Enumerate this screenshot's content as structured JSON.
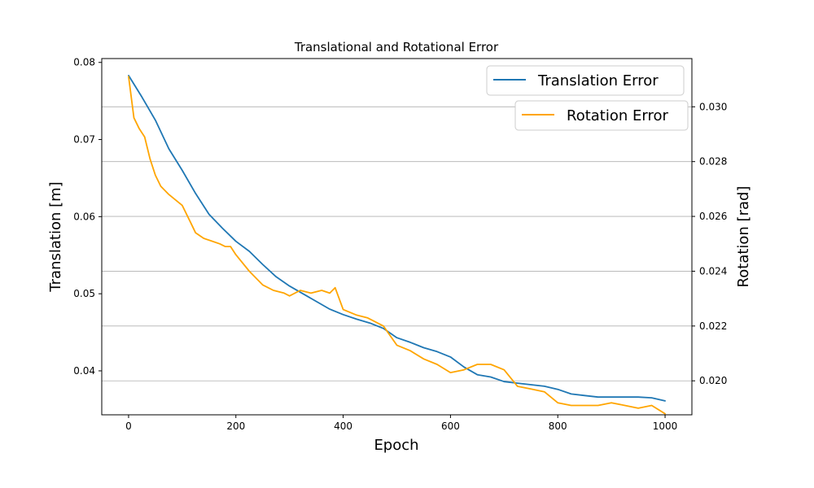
{
  "chart_data": {
    "type": "line",
    "title": "Translational  and Rotational Error",
    "xlabel": "Epoch",
    "ylabel_left": "Translation [m]",
    "ylabel_right": "Rotation [rad]",
    "xlim": [
      -50,
      1050
    ],
    "ylim_left": [
      0.0343,
      0.0805
    ],
    "ylim_right": [
      0.01876,
      0.03176
    ],
    "x_ticks": [
      0,
      200,
      400,
      600,
      800,
      1000
    ],
    "y_ticks_left": [
      0.04,
      0.05,
      0.06,
      0.07,
      0.08
    ],
    "y_ticks_right": [
      0.02,
      0.022,
      0.024,
      0.026,
      0.028,
      0.03
    ],
    "grid": "horizontal lines at right-axis ticks",
    "legend": [
      {
        "label": "Translation Error",
        "placement": "top-right"
      },
      {
        "label": "Rotation Error",
        "placement": "upper-right"
      }
    ],
    "series": [
      {
        "name": "Translation Error",
        "axis": "left",
        "color": "#1f77b4",
        "x": [
          0,
          25,
          50,
          75,
          100,
          125,
          150,
          175,
          200,
          225,
          250,
          275,
          300,
          325,
          350,
          375,
          400,
          425,
          450,
          475,
          500,
          525,
          550,
          575,
          600,
          625,
          650,
          675,
          700,
          725,
          750,
          775,
          800,
          825,
          850,
          875,
          900,
          925,
          950,
          975,
          1000
        ],
        "values": [
          0.0783,
          0.0755,
          0.0725,
          0.0688,
          0.066,
          0.063,
          0.0603,
          0.0585,
          0.0568,
          0.0555,
          0.0538,
          0.0522,
          0.051,
          0.05,
          0.049,
          0.048,
          0.0473,
          0.0467,
          0.0462,
          0.0455,
          0.0443,
          0.0437,
          0.043,
          0.0425,
          0.0418,
          0.0405,
          0.0395,
          0.0392,
          0.0386,
          0.0384,
          0.0382,
          0.038,
          0.0376,
          0.037,
          0.0368,
          0.0366,
          0.0366,
          0.0366,
          0.0366,
          0.0365,
          0.0361
        ]
      },
      {
        "name": "Rotation Error",
        "axis": "right",
        "color": "#ffa500",
        "x": [
          0,
          10,
          20,
          30,
          40,
          50,
          60,
          75,
          100,
          115,
          125,
          140,
          155,
          170,
          180,
          190,
          200,
          225,
          250,
          270,
          290,
          300,
          320,
          340,
          360,
          375,
          385,
          400,
          425,
          445,
          475,
          500,
          525,
          550,
          575,
          600,
          625,
          650,
          675,
          700,
          725,
          750,
          775,
          800,
          825,
          850,
          875,
          900,
          925,
          950,
          975,
          1000
        ],
        "values": [
          0.0311,
          0.0296,
          0.0292,
          0.0289,
          0.0281,
          0.0275,
          0.0271,
          0.0268,
          0.0264,
          0.0258,
          0.0254,
          0.0252,
          0.0251,
          0.025,
          0.0249,
          0.0249,
          0.0246,
          0.024,
          0.0235,
          0.0233,
          0.0232,
          0.0231,
          0.0233,
          0.0232,
          0.0233,
          0.0232,
          0.0234,
          0.0226,
          0.0224,
          0.0223,
          0.022,
          0.0213,
          0.0211,
          0.0208,
          0.0206,
          0.0203,
          0.0204,
          0.0206,
          0.0206,
          0.0204,
          0.0198,
          0.0197,
          0.0196,
          0.0192,
          0.0191,
          0.0191,
          0.0191,
          0.0192,
          0.0191,
          0.019,
          0.0191,
          0.0188
        ]
      }
    ]
  }
}
